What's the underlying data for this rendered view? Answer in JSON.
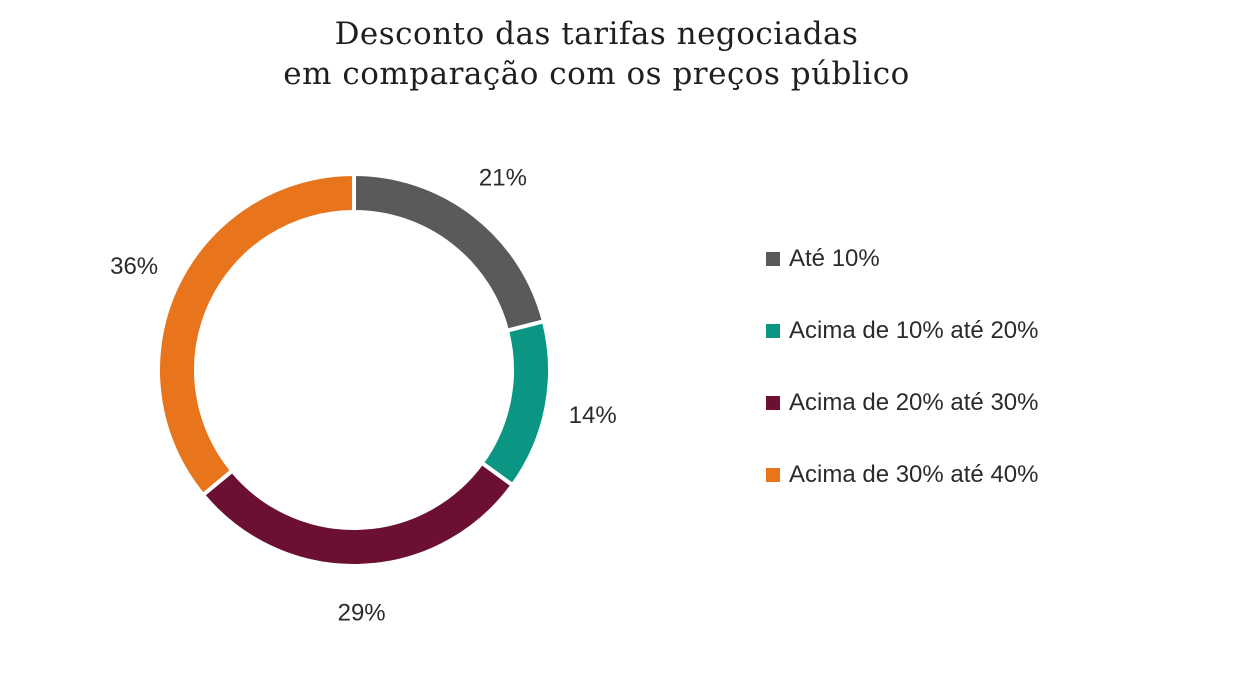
{
  "chart_data": {
    "type": "pie",
    "variant": "donut",
    "title_lines": [
      "Desconto das tarifas negociadas",
      "em comparação com os preços público"
    ],
    "categories": [
      "Até 10%",
      "Acima de 10% até 20%",
      "Acima de 20% até 30%",
      "Acima de 30% até 40%"
    ],
    "values": [
      21,
      14,
      29,
      36
    ],
    "value_labels": [
      "21%",
      "14%",
      "29%",
      "36%"
    ],
    "colors": [
      "#5a5a5a",
      "#0b9684",
      "#6b1032",
      "#e8741c"
    ],
    "legend_position": "right",
    "start_angle": "top",
    "direction": "clockwise"
  }
}
